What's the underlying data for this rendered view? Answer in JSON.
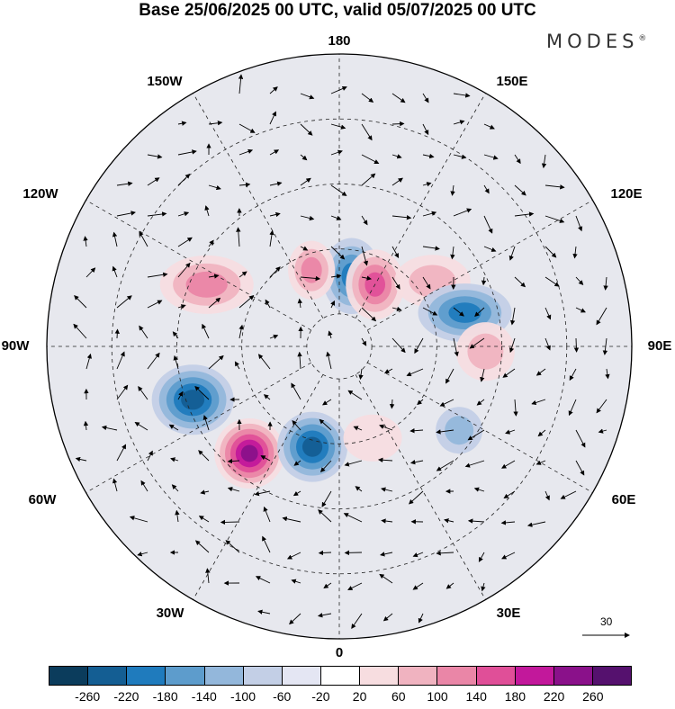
{
  "title": "Base 25/06/2025 00 UTC, valid 05/07/2025 00 UTC",
  "brand": {
    "name": "MODES",
    "mark": "®"
  },
  "longitude_labels": {
    "top": "180",
    "top_left": "150W",
    "top_right": "150E",
    "upper_left": "120W",
    "upper_right": "120E",
    "left": "90W",
    "right": "90E",
    "lower_left": "60W",
    "lower_right": "60E",
    "bottom_left": "30W",
    "bottom_right": "30E",
    "bottom": "0"
  },
  "reference_vector": {
    "label": "30"
  },
  "colorbar": {
    "colors": [
      "#0b3c5c",
      "#145e93",
      "#1f7bbd",
      "#5d9ccc",
      "#93b7db",
      "#c3cfe6",
      "#e4e6f3",
      "#ffffff",
      "#f7dde0",
      "#f0b3c0",
      "#ea86a7",
      "#e04f98",
      "#c2189b",
      "#8a118a",
      "#55116e"
    ],
    "ticks": [
      "-260",
      "-220",
      "-180",
      "-140",
      "-100",
      "-60",
      "-20",
      "20",
      "60",
      "100",
      "140",
      "180",
      "220",
      "260"
    ]
  },
  "anomaly_blobs": [
    {
      "rx": 0.1,
      "ry": 0.13,
      "lon": 170,
      "lat": 68,
      "level": 4,
      "sign": -1
    },
    {
      "rx": 0.08,
      "ry": 0.1,
      "lon": -160,
      "lat": 65,
      "level": 3,
      "sign": 1
    },
    {
      "rx": 0.1,
      "ry": 0.12,
      "lon": 150,
      "lat": 68,
      "level": 4,
      "sign": 1
    },
    {
      "rx": 0.13,
      "ry": 0.09,
      "lon": 125,
      "lat": 55,
      "level": 2,
      "sign": 1
    },
    {
      "rx": 0.16,
      "ry": 0.1,
      "lon": 105,
      "lat": 50,
      "level": 4,
      "sign": -1
    },
    {
      "rx": 0.16,
      "ry": 0.1,
      "lon": -115,
      "lat": 45,
      "level": 3,
      "sign": 1
    },
    {
      "rx": 0.14,
      "ry": 0.12,
      "lon": -70,
      "lat": 42,
      "level": 5,
      "sign": -1
    },
    {
      "rx": 0.12,
      "ry": 0.12,
      "lon": -40,
      "lat": 47,
      "level": 6,
      "sign": 1
    },
    {
      "rx": 0.12,
      "ry": 0.12,
      "lon": -15,
      "lat": 58,
      "level": 5,
      "sign": -1
    },
    {
      "rx": 0.1,
      "ry": 0.1,
      "lon": 88,
      "lat": 45,
      "level": 2,
      "sign": 1
    },
    {
      "rx": 0.08,
      "ry": 0.08,
      "lon": 55,
      "lat": 45,
      "level": 2,
      "sign": -1
    },
    {
      "rx": 0.1,
      "ry": 0.08,
      "lon": 20,
      "lat": 60,
      "level": 1,
      "sign": 1
    }
  ]
}
